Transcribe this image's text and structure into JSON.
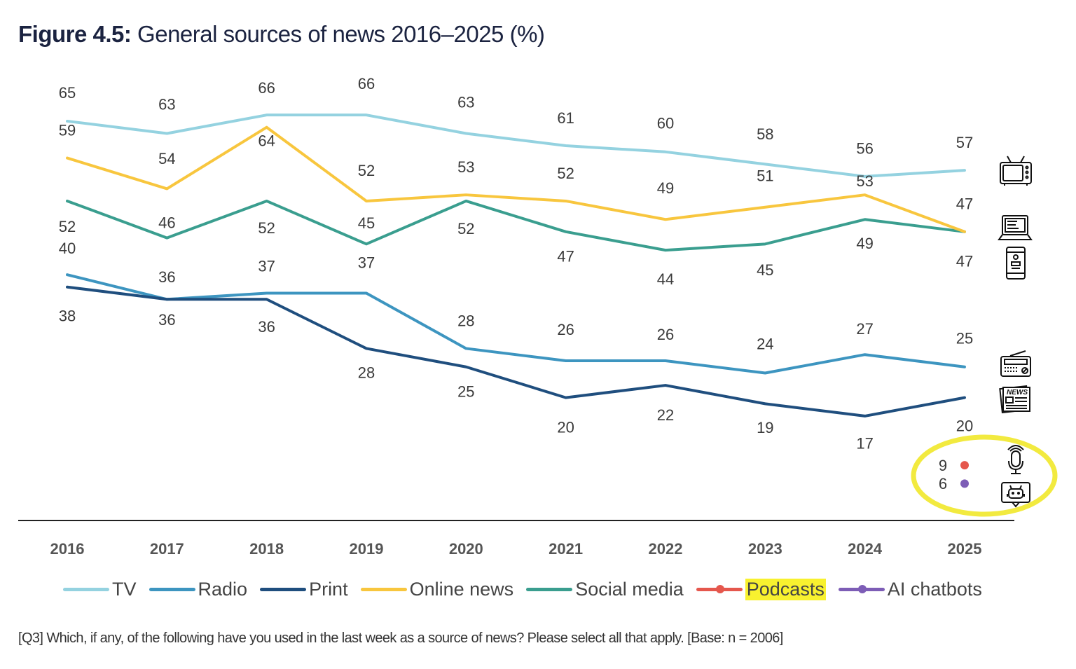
{
  "title": {
    "prefix": "Figure 4.5:",
    "text": "General sources of news 2016–2025 (%)"
  },
  "note": {
    "tag": "[Q3]",
    "text": "Which, if any, of the following have you used in the last week as a source of news? Please select all that apply. [Base: n = 2006]"
  },
  "chart_data": {
    "type": "line",
    "title": "General sources of news 2016–2025 (%)",
    "categories": [
      "2016",
      "2017",
      "2018",
      "2019",
      "2020",
      "2021",
      "2022",
      "2023",
      "2024",
      "2025"
    ],
    "ylim": [
      0,
      70
    ],
    "grid": false,
    "legend_placement": "bottom",
    "series": [
      {
        "name": "TV",
        "color": "#94d2e0",
        "icon": "tv-icon",
        "values": [
          65,
          63,
          66,
          66,
          63,
          61,
          60,
          58,
          56,
          57
        ]
      },
      {
        "name": "Radio",
        "color": "#3d95c0",
        "icon": "radio-icon",
        "values": [
          40,
          36,
          37,
          37,
          28,
          26,
          26,
          24,
          27,
          25
        ]
      },
      {
        "name": "Print",
        "color": "#1f4e7e",
        "icon": "newspaper-icon",
        "values": [
          38,
          36,
          36,
          28,
          25,
          20,
          22,
          19,
          17,
          20
        ]
      },
      {
        "name": "Online news",
        "color": "#f8c63e",
        "icon": "laptop-icon",
        "values": [
          59,
          54,
          64,
          52,
          53,
          52,
          49,
          51,
          53,
          47
        ]
      },
      {
        "name": "Social media",
        "color": "#3a9e8f",
        "icon": "smartphone-icon",
        "values": [
          52,
          46,
          52,
          45,
          52,
          47,
          44,
          45,
          49,
          47
        ]
      },
      {
        "name": "Podcasts",
        "color": "#e5574d",
        "icon": "microphone-icon",
        "highlighted": true,
        "values": [
          null,
          null,
          null,
          null,
          null,
          null,
          null,
          null,
          null,
          9
        ]
      },
      {
        "name": "AI chatbots",
        "color": "#7d5db6",
        "icon": "chatbot-icon",
        "values": [
          null,
          null,
          null,
          null,
          null,
          null,
          null,
          null,
          null,
          6
        ]
      }
    ],
    "annotation": {
      "type": "ellipse-highlight",
      "color": "#f2ea3f",
      "target": [
        "Podcasts",
        "AI chatbots"
      ]
    }
  }
}
